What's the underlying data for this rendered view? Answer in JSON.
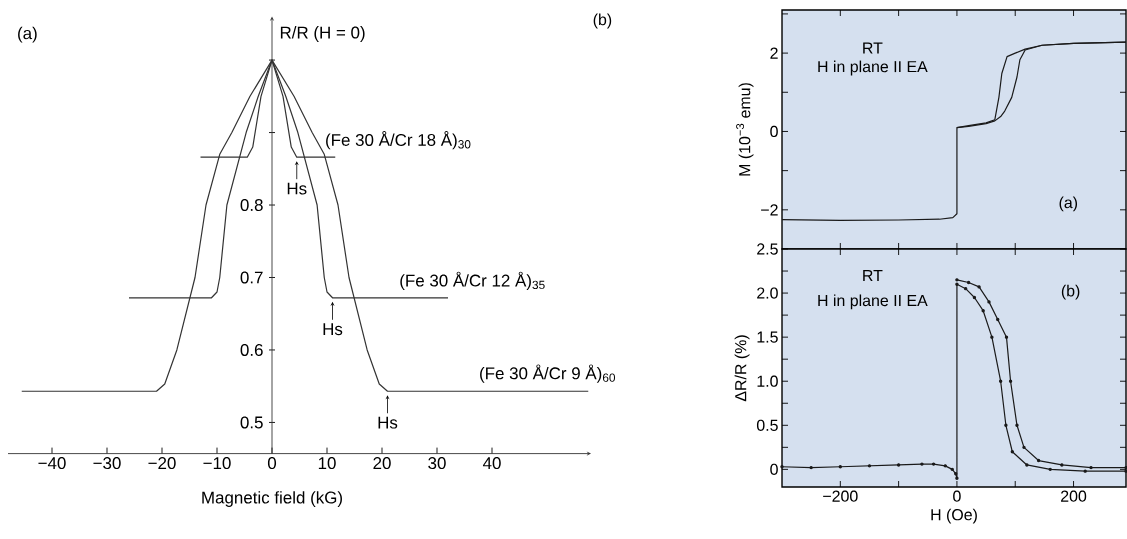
{
  "chart_data": [
    {
      "type": "line",
      "xlabel": "Magnetic field (kG)",
      "ylabel": "R/R (H = 0)",
      "xlim": [
        -48,
        58
      ],
      "ylim": [
        0.457,
        1.06
      ],
      "xticks": [
        {
          "value": -40,
          "label": "−40"
        },
        {
          "value": -30,
          "label": "−30"
        },
        {
          "value": -20,
          "label": "−20"
        },
        {
          "value": -10,
          "label": "−10"
        },
        0,
        10,
        20,
        30,
        40
      ],
      "yticks": [
        0.5,
        0.6,
        0.7,
        0.8,
        {
          "value": 0.9,
          "label": null
        },
        {
          "value": 1,
          "label": null
        }
      ],
      "marker": "none",
      "annotations": [
        "(a)",
        {
          "text": "Hs",
          "x": 4.5,
          "y": 0.866
        },
        {
          "text": "Hs",
          "x": 11,
          "y": 0.672
        },
        {
          "text": "Hs",
          "x": 21,
          "y": 0.543
        }
      ],
      "series": [
        {
          "name": "(Fe 30 Å/Cr 18 Å)$_{30}$",
          "color": "#333333",
          "x": [
            -13,
            -4.5,
            -3.5,
            -2,
            0,
            2,
            3.5,
            4.5,
            11.5
          ],
          "values": [
            0.866,
            0.866,
            0.88,
            0.95,
            1.0,
            0.95,
            0.88,
            0.866,
            0.866
          ]
        },
        {
          "name": "(Fe 30 Å/Cr 12 Å)$_{35}$",
          "color": "#333333",
          "x": [
            -26,
            -11,
            -10,
            -9.5,
            -8.2,
            -4.7,
            -2.5,
            0,
            2.5,
            4.7,
            8.2,
            9.5,
            10,
            11,
            32
          ],
          "values": [
            0.672,
            0.672,
            0.68,
            0.7,
            0.8,
            0.9,
            0.95,
            1.0,
            0.95,
            0.9,
            0.8,
            0.7,
            0.68,
            0.672,
            0.672
          ]
        },
        {
          "name": "(Fe 30 Å/Cr 9 Å)$_{60}$",
          "color": "#333333",
          "x": [
            -45.5,
            -21,
            -19.5,
            -17.3,
            -14,
            -12,
            -9.5,
            -7.3,
            -4,
            0,
            4,
            7.3,
            9.5,
            12,
            14,
            17.3,
            19.5,
            21,
            57.5
          ],
          "values": [
            0.543,
            0.543,
            0.553,
            0.6,
            0.7,
            0.8,
            0.87,
            0.9,
            0.95,
            1.0,
            0.95,
            0.9,
            0.87,
            0.8,
            0.7,
            0.6,
            0.553,
            0.543,
            0.543
          ]
        }
      ]
    },
    {
      "type": "line",
      "ylabel": "M (10$^{−3}$ emu)",
      "xlim": [
        -300,
        290
      ],
      "ylim": [
        -3,
        3.1
      ],
      "tick_labels": "y",
      "xticks": [
        -200,
        -100,
        0,
        100,
        200
      ],
      "yticks": [
        {
          "value": -2,
          "label": "−2"
        },
        {
          "value": -1,
          "label": null
        },
        0,
        {
          "value": 1,
          "label": null
        },
        2,
        {
          "value": 3,
          "label": null
        }
      ],
      "marker": "none",
      "annotations": [
        "(b)",
        "RT",
        "H in plane II EA",
        "(a)"
      ],
      "series": [
        {
          "color": "#1a1a1a",
          "x": [
            -300,
            -200,
            -100,
            -30,
            -7,
            0,
            0,
            20,
            50,
            65,
            72,
            77,
            86,
            100,
            117,
            146,
            200,
            290
          ],
          "values": [
            -2.25,
            -2.27,
            -2.26,
            -2.24,
            -2.2,
            -2.1,
            0.1,
            0.15,
            0.22,
            0.3,
            0.87,
            1.48,
            1.91,
            2.0,
            2.1,
            2.2,
            2.25,
            2.28
          ]
        },
        {
          "color": "#1a1a1a",
          "x": [
            0,
            20,
            50,
            65,
            75,
            82,
            94,
            103,
            108,
            117,
            146,
            200,
            290
          ],
          "values": [
            0.1,
            0.13,
            0.2,
            0.27,
            0.38,
            0.52,
            0.87,
            1.39,
            1.83,
            2.08,
            2.2,
            2.25,
            2.28
          ]
        }
      ]
    },
    {
      "type": "line",
      "xlabel": "H (Oe)",
      "ylabel": "ΔR/R (%)",
      "xlim": [
        -300,
        290
      ],
      "ylim": [
        -0.2,
        2.5
      ],
      "xticks": [
        {
          "value": -200,
          "label": "−200"
        },
        {
          "value": -100,
          "label": null
        },
        0,
        {
          "value": 100,
          "label": null
        },
        200
      ],
      "yticks": [
        0,
        {
          "value": 0.25,
          "label": null
        },
        0.5,
        {
          "value": 0.75,
          "label": null
        },
        {
          "value": 1,
          "label": "1.0"
        },
        {
          "value": 1.25,
          "label": null
        },
        1.5,
        {
          "value": 1.75,
          "label": null
        },
        {
          "value": 2,
          "label": "2.0"
        },
        {
          "value": 2.25,
          "label": null
        },
        2.5
      ],
      "marker": "circle",
      "annotations": [
        "RT",
        "H in plane II EA",
        "(b)"
      ],
      "series": [
        {
          "color": "#1a1a1a",
          "x": [
            -300,
            -250,
            -200,
            -150,
            -100,
            -60,
            -40,
            -20,
            -8,
            -2,
            0,
            0,
            15,
            30,
            45,
            60,
            75,
            84,
            95,
            120,
            160,
            220,
            290
          ],
          "values": [
            0.03,
            0.02,
            0.03,
            0.04,
            0.05,
            0.06,
            0.06,
            0.04,
            0.0,
            -0.05,
            -0.1,
            2.1,
            2.05,
            1.95,
            1.8,
            1.5,
            1.0,
            0.5,
            0.2,
            0.05,
            0.0,
            -0.02,
            -0.02
          ]
        },
        {
          "color": "#1a1a1a",
          "x": [
            0,
            20,
            38,
            55,
            70,
            85,
            92,
            103,
            115,
            140,
            180,
            230,
            290
          ],
          "values": [
            2.15,
            2.12,
            2.07,
            1.9,
            1.7,
            1.5,
            1.0,
            0.5,
            0.25,
            0.1,
            0.05,
            0.02,
            0.02
          ]
        }
      ]
    }
  ]
}
